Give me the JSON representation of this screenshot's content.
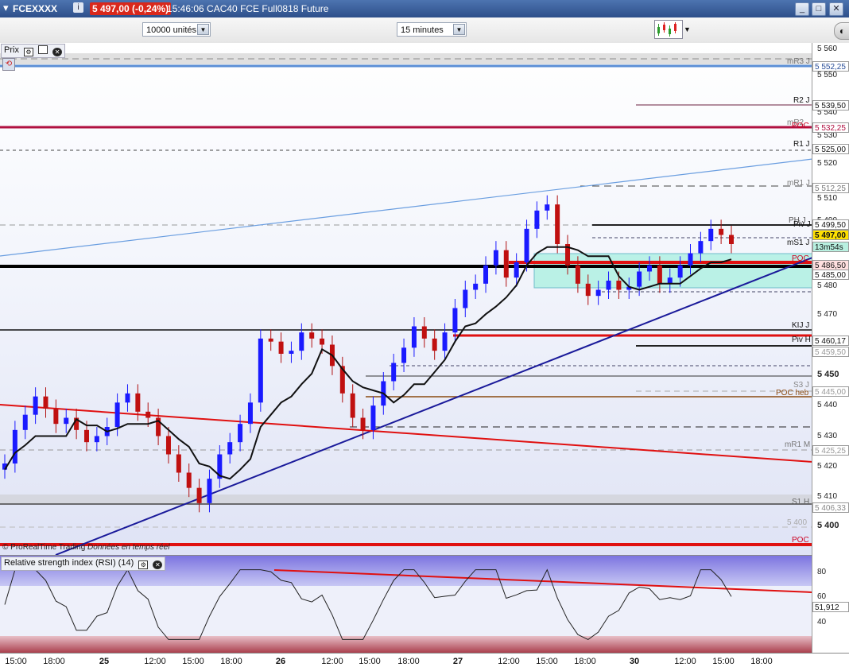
{
  "window": {
    "symbol": "FCEXXXX",
    "price_badge": "5 497,00 (-0,24%)",
    "time_text": "15:46:06 CAC40 FCE Full0818 Future",
    "buttons": [
      "_",
      "□",
      "✕"
    ]
  },
  "toolbar": {
    "units_select": "10000 unités",
    "interval_select": "15 minutes",
    "chart_type_icon": "candlestick-chart-icon"
  },
  "price_panel": {
    "tag": "Prix",
    "copyright": "© ProRealTime Trading",
    "copyright_note": "Données en temps réel"
  },
  "rsi_panel": {
    "tag": "Relative strength index (RSI) (14)",
    "current_value": "51,912",
    "levels": [
      "80",
      "60",
      "40"
    ]
  },
  "price_axis": {
    "ticks": [
      "5 560",
      "5 550",
      "5 540",
      "5 530",
      "5 520",
      "5 510",
      "5 490",
      "5 480",
      "5 470",
      "5 450",
      "5 440",
      "5 430",
      "5 420",
      "5 410",
      "5 400"
    ],
    "boxes": [
      "5 552,25",
      "5 539,50",
      "5 532,25",
      "5 525,00",
      "5 512,25",
      "5 499,50",
      "5 497,00",
      "13m54s",
      "5 486,50",
      "5 485,00",
      "5 460,17",
      "5 459,50",
      "5 445,00",
      "5 425,25",
      "5 406,33"
    ]
  },
  "level_labels": [
    "mR3 J",
    "R2 J",
    "mR2",
    "POC",
    "R1 J",
    "mR1 J",
    "PH J",
    "Piv J",
    "mS1 J",
    "POC",
    "KIJ J",
    "Piv H",
    "S3 J",
    "POC heb",
    "mR1 M",
    "S1 H",
    "5 400",
    "POC"
  ],
  "time_axis": [
    "15:00",
    "18:00",
    "25",
    "12:00",
    "15:00",
    "18:00",
    "26",
    "12:00",
    "15:00",
    "18:00",
    "27",
    "12:00",
    "15:00",
    "18:00",
    "30",
    "12:00",
    "15:00",
    "18:00"
  ],
  "colors": {
    "titlebar": "#3a609c",
    "candle": "#1a1aff",
    "poc_red": "#e01010",
    "trend_blue": "#1a1a9a",
    "rsi_over": "#8a84e8",
    "rsi_under": "#b04050"
  },
  "chart_data": {
    "type": "candlestick",
    "instrument": "CAC40 FCE Full0818 Future",
    "interval": "15 minutes",
    "last_price": 5497.0,
    "change_pct": -0.24,
    "price_range": [
      5395,
      5563
    ],
    "closes": [
      5425,
      5436,
      5441,
      5447,
      5443,
      5438,
      5440,
      5436,
      5432,
      5434,
      5437,
      5445,
      5448,
      5442,
      5440,
      5434,
      5428,
      5422,
      5417,
      5412,
      5420,
      5428,
      5432,
      5438,
      5445,
      5466,
      5465,
      5461,
      5462,
      5468,
      5466,
      5464,
      5457,
      5448,
      5440,
      5436,
      5444,
      5452,
      5458,
      5463,
      5470,
      5466,
      5462,
      5468,
      5476,
      5482,
      5484,
      5490,
      5495,
      5486,
      5491,
      5502,
      5508,
      5510,
      5497,
      5490,
      5484,
      5480,
      5482,
      5485,
      5482,
      5483,
      5488,
      5490,
      5484,
      5486,
      5490,
      5494,
      5498,
      5502,
      5500,
      5497
    ],
    "rsi": {
      "value": 51.912,
      "levels": [
        80,
        60,
        40
      ]
    }
  }
}
